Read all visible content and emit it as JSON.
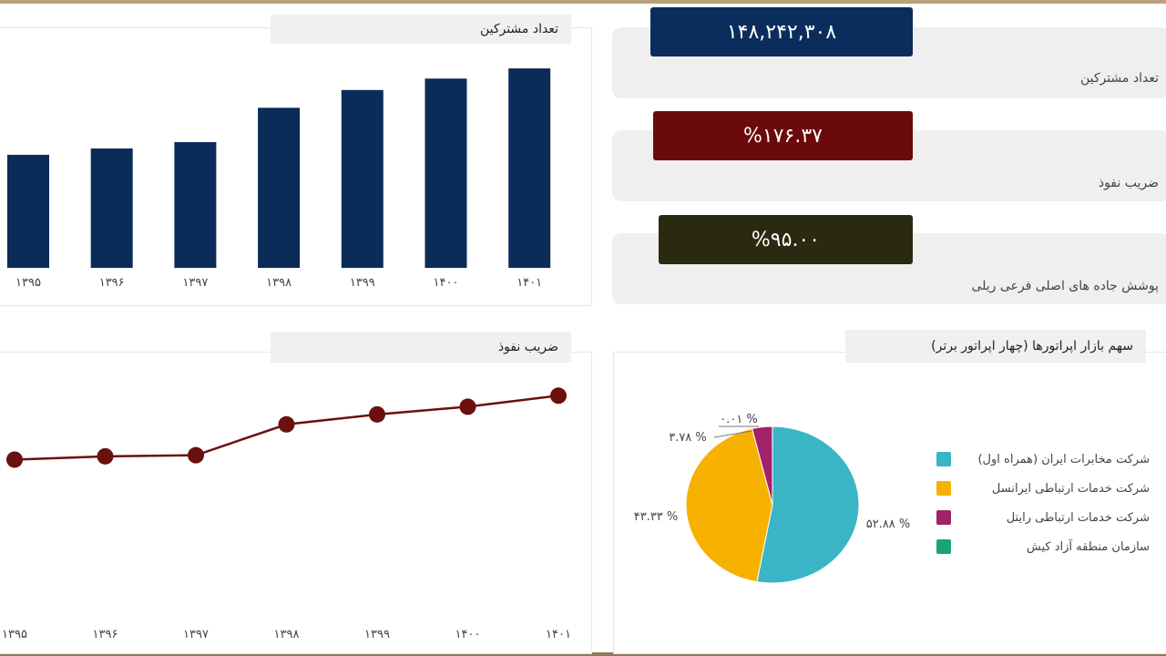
{
  "kpis": [
    {
      "label": "تعداد مشترکین",
      "value": "۱۴۸,۲۴۲,۳۰۸",
      "color": "#0b2d5c"
    },
    {
      "label": "ضریب نفوذ",
      "value": "%۱۷۶.۳۷",
      "color": "#6b0a0a"
    },
    {
      "label": "پوشش جاده های اصلی فرعی ریلی",
      "value": "%۹۵.۰۰",
      "color": "#2a2a10"
    }
  ],
  "chart_data": [
    {
      "type": "bar",
      "title": "تعداد مشترکین",
      "categories": [
        "۱۳۹۵",
        "۱۳۹۶",
        "۱۳۹۷",
        "۱۳۹۸",
        "۱۳۹۹",
        "۱۴۰۰",
        "۱۴۰۱"
      ],
      "values": [
        89,
        94,
        99,
        126,
        140,
        149,
        157
      ],
      "ylim": [
        0,
        175
      ],
      "bar_color": "#0b2b58",
      "grid": false
    },
    {
      "type": "line",
      "title": "ضریب نفوذ",
      "categories": [
        "۱۳۹۵",
        "۱۳۹۶",
        "۱۳۹۷",
        "۱۳۹۸",
        "۱۳۹۹",
        "۱۴۰۰",
        "۱۴۰۱"
      ],
      "values": [
        112,
        115,
        116,
        144,
        153,
        160,
        170
      ],
      "ylim": [
        0,
        200
      ],
      "line_color": "#6b0f0f",
      "grid": false
    },
    {
      "type": "pie",
      "title": "سهم بازار اپراتورها (چهار اپراتور برتر)",
      "slices": [
        {
          "name": "شرکت مخابرات ایران (همراه اول)",
          "value": 52.88,
          "label": "۵۲.۸۸ %",
          "color": "#3ab5c6"
        },
        {
          "name": "شرکت خدمات ارتباطی ایرانسل",
          "value": 43.33,
          "label": "۴۳.۳۳ %",
          "color": "#f7b100"
        },
        {
          "name": "شرکت خدمات ارتباطی رایتل",
          "value": 3.78,
          "label": "۳.۷۸ %",
          "color": "#a3206a"
        },
        {
          "name": "سازمان منطقه آزاد کیش",
          "value": 0.01,
          "label": "۰.۰۱ %",
          "color": "#1aa37a"
        }
      ],
      "legend": "right"
    }
  ]
}
